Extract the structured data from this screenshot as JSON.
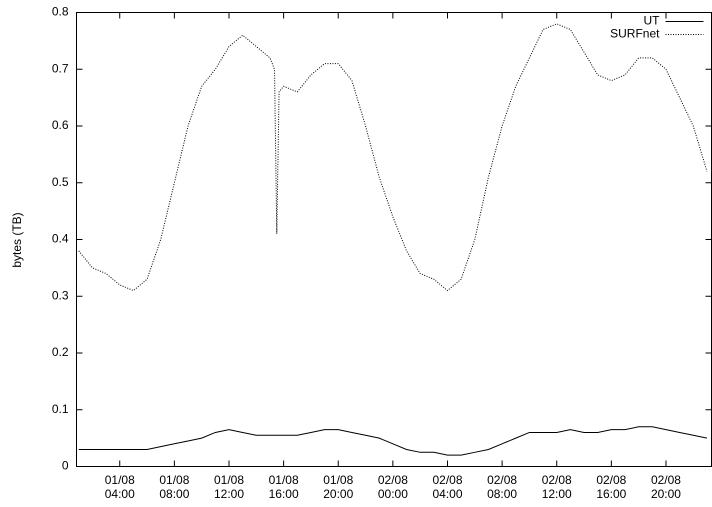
{
  "chart_data": {
    "type": "line",
    "y_label": "bytes (TB)",
    "x": [
      "01/08 01:00",
      "01/08 02:00",
      "01/08 03:00",
      "01/08 04:00",
      "01/08 05:00",
      "01/08 06:00",
      "01/08 07:00",
      "01/08 08:00",
      "01/08 09:00",
      "01/08 10:00",
      "01/08 11:00",
      "01/08 12:00",
      "01/08 13:00",
      "01/08 14:00",
      "01/08 15:00",
      "01/08 15:20",
      "01/08 15:30",
      "01/08 15:40",
      "01/08 16:00",
      "01/08 17:00",
      "01/08 18:00",
      "01/08 19:00",
      "01/08 20:00",
      "01/08 21:00",
      "01/08 22:00",
      "01/08 23:00",
      "02/08 00:00",
      "02/08 01:00",
      "02/08 02:00",
      "02/08 03:00",
      "02/08 04:00",
      "02/08 05:00",
      "02/08 06:00",
      "02/08 07:00",
      "02/08 08:00",
      "02/08 09:00",
      "02/08 10:00",
      "02/08 11:00",
      "02/08 12:00",
      "02/08 13:00",
      "02/08 14:00",
      "02/08 15:00",
      "02/08 16:00",
      "02/08 17:00",
      "02/08 18:00",
      "02/08 19:00",
      "02/08 20:00",
      "02/08 21:00",
      "02/08 22:00",
      "02/08 23:00"
    ],
    "series": [
      {
        "name": "UT",
        "color": "#000000",
        "line_style": "solid",
        "values": [
          0.03,
          0.03,
          0.03,
          0.03,
          0.03,
          0.03,
          0.035,
          0.04,
          0.045,
          0.05,
          0.06,
          0.065,
          0.06,
          0.055,
          0.055,
          0.055,
          0.055,
          0.055,
          0.055,
          0.055,
          0.06,
          0.065,
          0.065,
          0.06,
          0.055,
          0.05,
          0.04,
          0.03,
          0.025,
          0.025,
          0.02,
          0.02,
          0.025,
          0.03,
          0.04,
          0.05,
          0.06,
          0.06,
          0.06,
          0.065,
          0.06,
          0.06,
          0.065,
          0.065,
          0.07,
          0.07,
          0.065,
          0.06,
          0.055,
          0.05
        ]
      },
      {
        "name": "SURFnet",
        "color": "#000000",
        "line_style": "dotted",
        "values": [
          0.38,
          0.35,
          0.34,
          0.32,
          0.31,
          0.33,
          0.4,
          0.5,
          0.6,
          0.67,
          0.7,
          0.74,
          0.76,
          0.74,
          0.72,
          0.7,
          0.41,
          0.66,
          0.67,
          0.66,
          0.69,
          0.71,
          0.71,
          0.68,
          0.6,
          0.51,
          0.44,
          0.38,
          0.34,
          0.33,
          0.31,
          0.33,
          0.4,
          0.51,
          0.6,
          0.67,
          0.72,
          0.77,
          0.78,
          0.77,
          0.73,
          0.69,
          0.68,
          0.69,
          0.72,
          0.72,
          0.7,
          0.65,
          0.6,
          0.52
        ]
      }
    ],
    "xlim": [
      "01/08 00:50",
      "02/08 23:20"
    ],
    "xticks": [
      "01/08\n04:00",
      "01/08\n08:00",
      "01/08\n12:00",
      "01/08\n16:00",
      "01/08\n20:00",
      "02/08\n00:00",
      "02/08\n04:00",
      "02/08\n08:00",
      "02/08\n12:00",
      "02/08\n16:00",
      "02/08\n20:00"
    ],
    "ylim": [
      0,
      0.8
    ],
    "yticks": [
      0,
      0.1,
      0.2,
      0.3,
      0.4,
      0.5,
      0.6,
      0.7,
      0.8
    ],
    "legend": "top-right"
  }
}
